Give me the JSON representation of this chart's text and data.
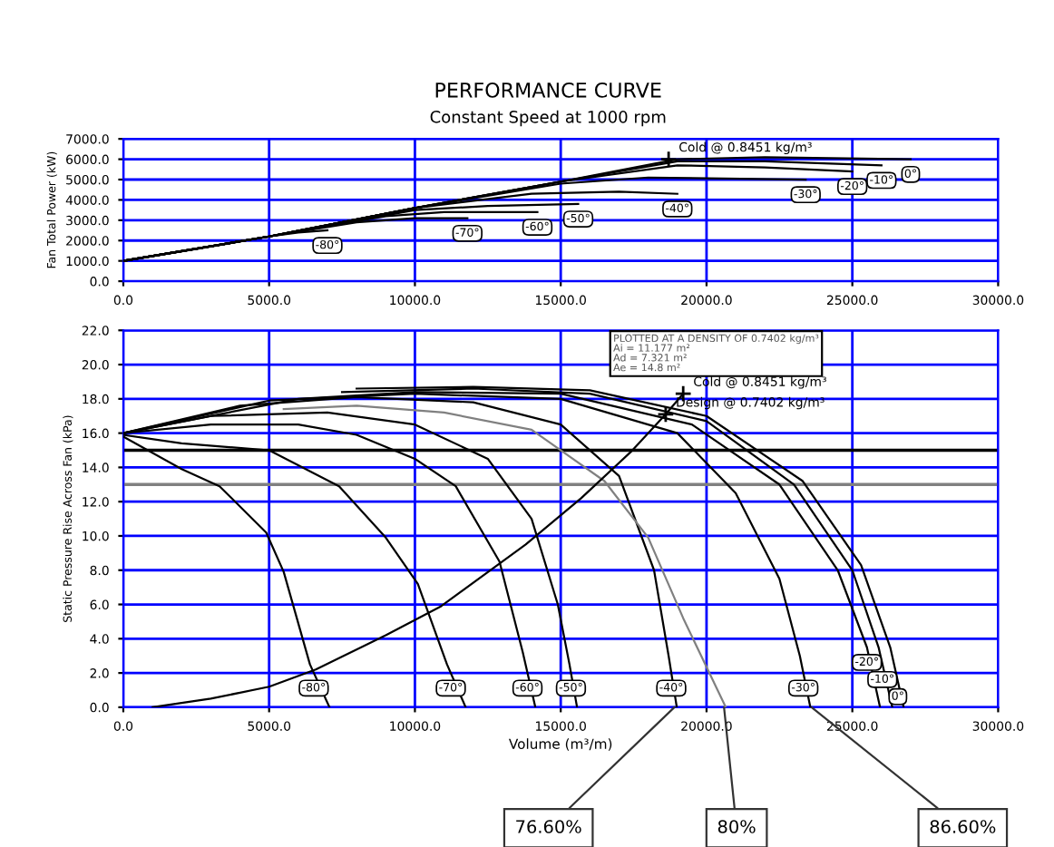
{
  "chart_data": [
    {
      "type": "line",
      "title": "PERFORMANCE CURVE",
      "subtitle": "Constant Speed at 1000 rpm",
      "ylabel": "Fan Total Power (kW)",
      "xlim": [
        0,
        30000
      ],
      "xticks": [
        {
          "value": 0,
          "label": "0.0"
        },
        {
          "value": 5000,
          "label": "5000.0"
        },
        {
          "value": 10000,
          "label": "10000.0"
        },
        {
          "value": 15000,
          "label": "15000.0"
        },
        {
          "value": 20000,
          "label": "20000.0"
        },
        {
          "value": 25000,
          "label": "25000.0"
        },
        {
          "value": 30000,
          "label": "30000.0"
        }
      ],
      "ylim": [
        0,
        7000
      ],
      "yticks": [
        {
          "value": 0,
          "label": "0.0"
        },
        {
          "value": 1000,
          "label": "1000.0"
        },
        {
          "value": 2000,
          "label": "2000.0"
        },
        {
          "value": 3000,
          "label": "3000.0"
        },
        {
          "value": 4000,
          "label": "4000.0"
        },
        {
          "value": 5000,
          "label": "5000.0"
        },
        {
          "value": 6000,
          "label": "6000.0"
        },
        {
          "value": 7000,
          "label": "7000.0"
        }
      ],
      "grid": true,
      "legend": false,
      "marker": "none",
      "line_style": "solid",
      "series": [
        {
          "color": "#000000",
          "x": [
            0,
            3000,
            5000,
            6000,
            7000
          ],
          "values": [
            1000,
            1700,
            2200,
            2400,
            2500
          ]
        },
        {
          "color": "#000000",
          "x": [
            0,
            5000,
            8000,
            10000,
            11800
          ],
          "values": [
            1000,
            2200,
            2900,
            3100,
            3100
          ]
        },
        {
          "color": "#000000",
          "x": [
            0,
            5000,
            9000,
            11000,
            14200
          ],
          "values": [
            1000,
            2200,
            3200,
            3400,
            3400
          ]
        },
        {
          "color": "#000000",
          "x": [
            0,
            5000,
            10000,
            12500,
            15600
          ],
          "values": [
            1000,
            2200,
            3500,
            3700,
            3800
          ]
        },
        {
          "color": "#000000",
          "x": [
            0,
            5000,
            10000,
            14000,
            17000,
            19000
          ],
          "values": [
            1000,
            2200,
            3600,
            4300,
            4400,
            4300
          ]
        },
        {
          "color": "#000000",
          "x": [
            0,
            5000,
            10000,
            15000,
            18000,
            23400
          ],
          "values": [
            1000,
            2200,
            3600,
            4800,
            5100,
            5000
          ]
        },
        {
          "color": "#000000",
          "x": [
            0,
            5000,
            10000,
            15000,
            19000,
            22000,
            25000
          ],
          "values": [
            1000,
            2200,
            3600,
            4900,
            5700,
            5600,
            5400
          ]
        },
        {
          "color": "#000000",
          "x": [
            0,
            5000,
            10000,
            15000,
            19000,
            22000,
            26000
          ],
          "values": [
            1000,
            2200,
            3600,
            4900,
            5900,
            5900,
            5700
          ]
        },
        {
          "color": "#000000",
          "x": [
            0,
            5000,
            10000,
            15000,
            19000,
            22000,
            27000
          ],
          "values": [
            1000,
            2200,
            3600,
            4900,
            6000,
            6100,
            6000
          ]
        }
      ],
      "annotations": [
        {
          "text": "-80°",
          "x": 7000,
          "y": 2500
        },
        {
          "text": "-70°",
          "x": 11800,
          "y": 3100
        },
        {
          "text": "-60°",
          "x": 14200,
          "y": 3400
        },
        {
          "text": "-50°",
          "x": 15600,
          "y": 3800
        },
        {
          "text": "-40°",
          "x": 19000,
          "y": 4300
        },
        {
          "text": "-30°",
          "x": 23400,
          "y": 5000
        },
        {
          "text": "-20°",
          "x": 25000,
          "y": 5400
        },
        {
          "text": "-10°",
          "x": 26000,
          "y": 5700
        },
        {
          "text": "0°",
          "x": 27000,
          "y": 6000
        },
        {
          "text": "Cold @ 0.8451 kg/m³",
          "x": 18700,
          "y": 6000
        }
      ]
    },
    {
      "type": "line",
      "xlabel": "Volume (m³/m)",
      "ylabel": "Static Pressure Rise Across Fan (kPa)",
      "xlim": [
        0,
        30000
      ],
      "xticks": [
        {
          "value": 0,
          "label": "0.0"
        },
        {
          "value": 5000,
          "label": "5000.0"
        },
        {
          "value": 10000,
          "label": "10000.0"
        },
        {
          "value": 15000,
          "label": "15000.0"
        },
        {
          "value": 20000,
          "label": "20000.0"
        },
        {
          "value": 25000,
          "label": "25000.0"
        },
        {
          "value": 30000,
          "label": "30000.0"
        }
      ],
      "ylim": [
        0,
        22
      ],
      "yticks": [
        {
          "value": 0,
          "label": "0.0"
        },
        {
          "value": 2,
          "label": "2.0"
        },
        {
          "value": 4,
          "label": "4.0"
        },
        {
          "value": 6,
          "label": "6.0"
        },
        {
          "value": 8,
          "label": "8.0"
        },
        {
          "value": 10,
          "label": "10.0"
        },
        {
          "value": 12,
          "label": "12.0"
        },
        {
          "value": 14,
          "label": "14.0"
        },
        {
          "value": 16,
          "label": "16.0"
        },
        {
          "value": 18,
          "label": "18.0"
        },
        {
          "value": 20,
          "label": "20.0"
        },
        {
          "value": 22,
          "label": "22.0"
        }
      ],
      "grid": true,
      "legend": false,
      "marker": "none",
      "line_style": "solid",
      "ref_lines": [
        {
          "axis": "y",
          "value": 15,
          "color": "#000000"
        },
        {
          "axis": "y",
          "value": 13,
          "color": "#808080"
        }
      ],
      "series": [
        {
          "color": "#000000",
          "x": [
            0,
            2000,
            3300,
            4900,
            5500,
            6400,
            7070
          ],
          "values": [
            15.8,
            13.9,
            12.9,
            10.2,
            7.9,
            2.5,
            0
          ]
        },
        {
          "color": "#000000",
          "x": [
            0,
            2000,
            5000,
            7400,
            9000,
            10100,
            11100,
            11740
          ],
          "values": [
            15.9,
            15.4,
            15.0,
            12.9,
            9.9,
            7.2,
            2.5,
            0
          ]
        },
        {
          "color": "#000000",
          "x": [
            0,
            3000,
            6000,
            8000,
            10000,
            11400,
            12900,
            13700,
            14130
          ],
          "values": [
            16,
            16.5,
            16.5,
            15.9,
            14.5,
            12.9,
            8.5,
            3.2,
            0
          ]
        },
        {
          "color": "#000000",
          "x": [
            0,
            3000,
            7000,
            10000,
            12500,
            14000,
            14900,
            15300,
            15560
          ],
          "values": [
            16,
            17.0,
            17.2,
            16.5,
            14.5,
            11.0,
            6,
            2.5,
            0
          ]
        },
        {
          "color": "#000000",
          "x": [
            0,
            4000,
            8000,
            12000,
            15000,
            17000,
            18200,
            18700,
            18980
          ],
          "values": [
            16,
            17.6,
            18.1,
            17.8,
            16.5,
            13.5,
            8,
            3,
            0
          ]
        },
        {
          "color": "#000000",
          "x": [
            0,
            5000,
            10000,
            15000,
            19000,
            21000,
            22500,
            23200,
            23560
          ],
          "values": [
            16,
            17.9,
            18.3,
            18.0,
            16.0,
            12.5,
            7.5,
            3,
            0
          ]
        },
        {
          "color": "#000000",
          "x": [
            0,
            6000,
            10000,
            15000,
            19500,
            22500,
            24500,
            25500,
            25950
          ],
          "values": [
            16,
            18.0,
            18.4,
            18.3,
            16.5,
            13,
            8,
            3.5,
            0
          ]
        },
        {
          "color": "#000000",
          "x": [
            7500,
            12000,
            16000,
            20000,
            23000,
            25000,
            25900,
            26370
          ],
          "values": [
            18.4,
            18.6,
            18.3,
            16.7,
            13,
            8,
            3.5,
            0
          ]
        },
        {
          "color": "#000000",
          "x": [
            8000,
            12000,
            16000,
            20000,
            23300,
            25300,
            26300,
            26760
          ],
          "values": [
            18.6,
            18.7,
            18.5,
            17,
            13.2,
            8.3,
            3.5,
            0
          ]
        },
        {
          "color": "#808080",
          "x": [
            5500,
            8000,
            11000,
            14000,
            16500,
            18000,
            19200,
            20660
          ],
          "values": [
            17.4,
            17.6,
            17.2,
            16.2,
            13.2,
            9.9,
            5.2,
            0
          ]
        },
        {
          "color": "#000000",
          "x": [
            1000,
            3000,
            5000,
            6600,
            9000,
            10900,
            13800,
            15700,
            17400,
            18600,
            19200
          ],
          "values": [
            0,
            0.5,
            1.2,
            2.2,
            4.2,
            5.9,
            9.5,
            12.2,
            14.9,
            17.1,
            18.3
          ]
        }
      ],
      "annotations": [
        {
          "text": "-80°",
          "x": 6530,
          "y": 2.0
        },
        {
          "text": "-70°",
          "x": 11230,
          "y": 2.0
        },
        {
          "text": "-60°",
          "x": 13860,
          "y": 2.0
        },
        {
          "text": "-50°",
          "x": 15350,
          "y": 2.0
        },
        {
          "text": "-40°",
          "x": 18790,
          "y": 2.0
        },
        {
          "text": "-30°",
          "x": 23320,
          "y": 2.0
        },
        {
          "text": "-20°",
          "x": 25500,
          "y": 3.5
        },
        {
          "text": "-10°",
          "x": 26030,
          "y": 2.5
        },
        {
          "text": "0°",
          "x": 26560,
          "y": 1.5
        },
        {
          "text": "Cold @ 0.8451 kg/m³",
          "x": 19200,
          "y": 18.3
        },
        {
          "text": "Design @ 0.7402 kg/m³",
          "x": 18600,
          "y": 17.1
        },
        {
          "text": "76.60%",
          "x": 18900,
          "y": 0
        },
        {
          "text": "80%",
          "x": 20600,
          "y": 0
        },
        {
          "text": "86.60%",
          "x": 23600,
          "y": 0
        },
        "PLOTTED AT A DENSITY OF 0.7402 kg/m³",
        "Ai = 11.177 m²",
        "Ad = 7.321 m²",
        "Ae = 14.8 m²"
      ]
    }
  ]
}
